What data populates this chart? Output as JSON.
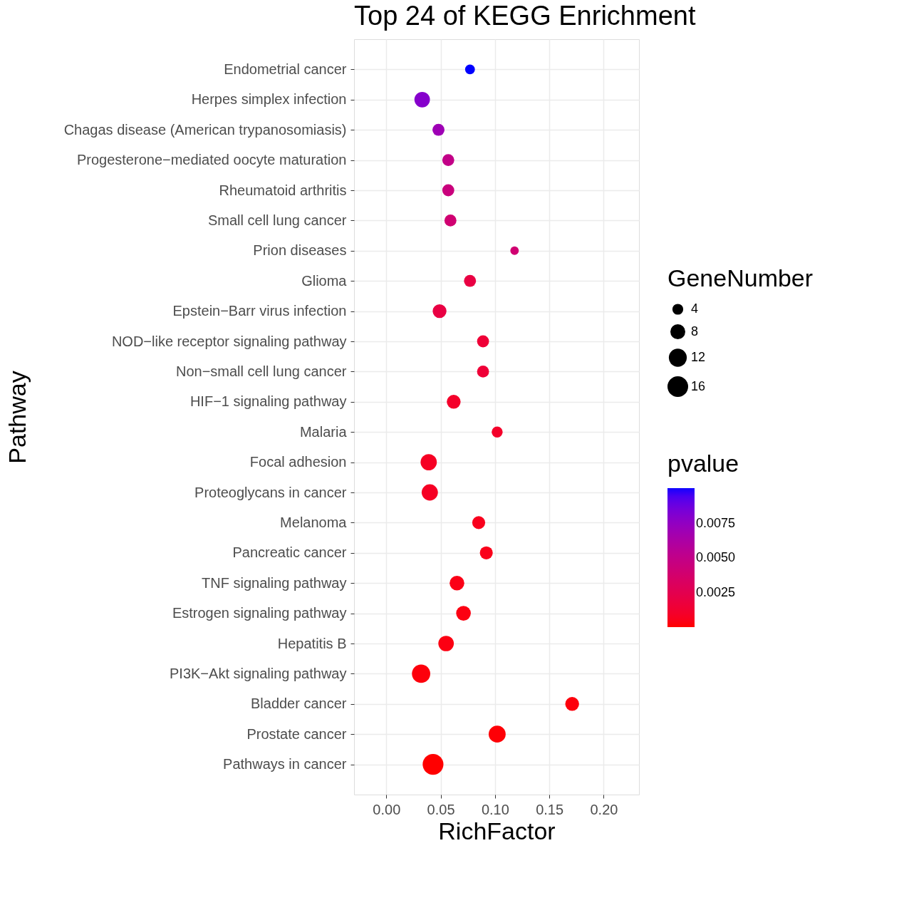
{
  "chart_data": {
    "type": "bubble",
    "orientation": "horizontal",
    "title": "Top 24 of KEGG Enrichment",
    "xlabel": "RichFactor",
    "ylabel": "Pathway",
    "legend_title": "GeneNumber",
    "clabel": "pvalue",
    "categories": [
      "Endometrial cancer",
      "Herpes simplex infection",
      "Chagas disease (American trypanosomiasis)",
      "Progesterone−mediated oocyte maturation",
      "Rheumatoid arthritis",
      "Small cell lung cancer",
      "Prion diseases",
      "Glioma",
      "Epstein−Barr virus infection",
      "NOD−like receptor signaling pathway",
      "Non−small cell lung cancer",
      "HIF−1 signaling pathway",
      "Malaria",
      "Focal adhesion",
      "Proteoglycans in cancer",
      "Melanoma",
      "Pancreatic cancer",
      "TNF signaling pathway",
      "Estrogen signaling pathway",
      "Hepatitis B",
      "PI3K−Akt signaling pathway",
      "Bladder cancer",
      "Prostate cancer",
      "Pathways in cancer"
    ],
    "values": [
      0.077,
      0.033,
      0.048,
      0.057,
      0.057,
      0.059,
      0.118,
      0.077,
      0.049,
      0.089,
      0.089,
      0.062,
      0.102,
      0.039,
      0.04,
      0.085,
      0.092,
      0.065,
      0.071,
      0.055,
      0.032,
      0.171,
      0.102,
      0.043
    ],
    "sizes": [
      4,
      10,
      6,
      6,
      6,
      6,
      3,
      6,
      8,
      6,
      6,
      8,
      5,
      11,
      11,
      7,
      7,
      9,
      9,
      10,
      14,
      8,
      12,
      18
    ],
    "size_legend": [
      4,
      8,
      12,
      16
    ],
    "cvalues": [
      0.0101,
      0.008,
      0.007,
      0.005,
      0.0045,
      0.004,
      0.004,
      0.002,
      0.002,
      0.0015,
      0.0015,
      0.001,
      0.001,
      0.0008,
      0.0008,
      0.0006,
      0.0005,
      0.0004,
      0.0003,
      0.0003,
      0.0002,
      0.0002,
      0.0001,
      0.0
    ],
    "clim": [
      0.0,
      0.0101
    ],
    "cticks": [
      {
        "value": 0.0025,
        "label": "0.0025"
      },
      {
        "value": 0.005,
        "label": "0.0050"
      },
      {
        "value": 0.0075,
        "label": "0.0075"
      }
    ],
    "xlim": [
      -0.0297,
      0.2325
    ],
    "xticks": [
      {
        "value": 0,
        "label": "0.00"
      },
      {
        "value": 0.05,
        "label": "0.05"
      },
      {
        "value": 0.1,
        "label": "0.10"
      },
      {
        "value": 0.15,
        "label": "0.15"
      },
      {
        "value": 0.2,
        "label": "0.20"
      }
    ],
    "grid": true
  }
}
